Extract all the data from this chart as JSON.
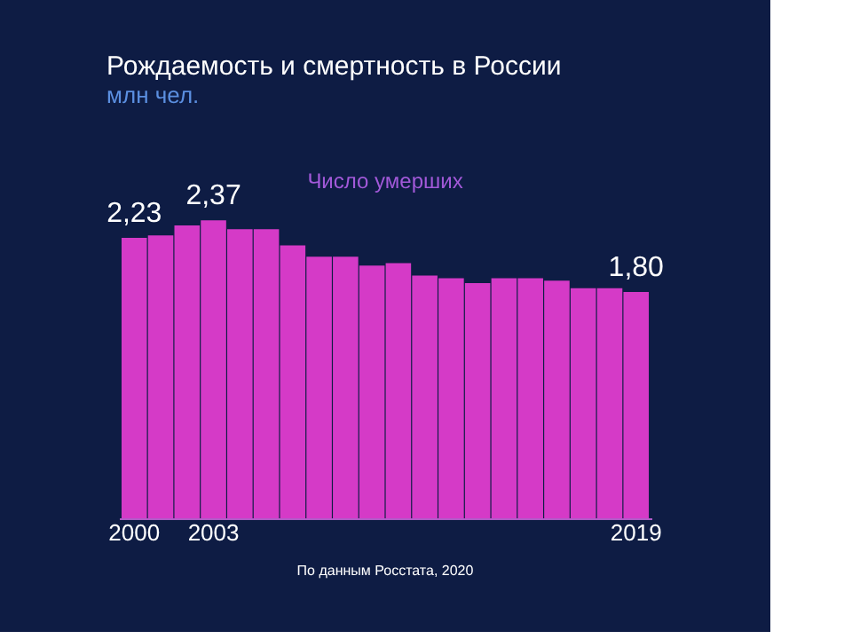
{
  "chart_data": {
    "type": "bar",
    "title": "Рождаемость и смертность в России",
    "subtitle": "млн чел.",
    "categories": [
      "2000",
      null,
      null,
      "2003",
      null,
      null,
      null,
      null,
      null,
      null,
      null,
      null,
      null,
      null,
      null,
      null,
      null,
      null,
      null,
      "2019"
    ],
    "series": [
      {
        "name": "Число умерших",
        "color": "#e03ccf",
        "values": [
          2.23,
          2.25,
          2.33,
          2.37,
          2.3,
          2.3,
          2.17,
          2.08,
          2.08,
          2.01,
          2.03,
          1.93,
          1.91,
          1.87,
          1.91,
          1.91,
          1.89,
          1.83,
          1.83,
          1.8
        ],
        "value_labels": [
          "2,23",
          null,
          null,
          "2,37",
          null,
          null,
          null,
          null,
          null,
          null,
          null,
          null,
          null,
          null,
          null,
          null,
          null,
          null,
          null,
          "1,80"
        ]
      }
    ],
    "annotations": [
      "По данным Росстата, 2020"
    ],
    "grid": false
  }
}
